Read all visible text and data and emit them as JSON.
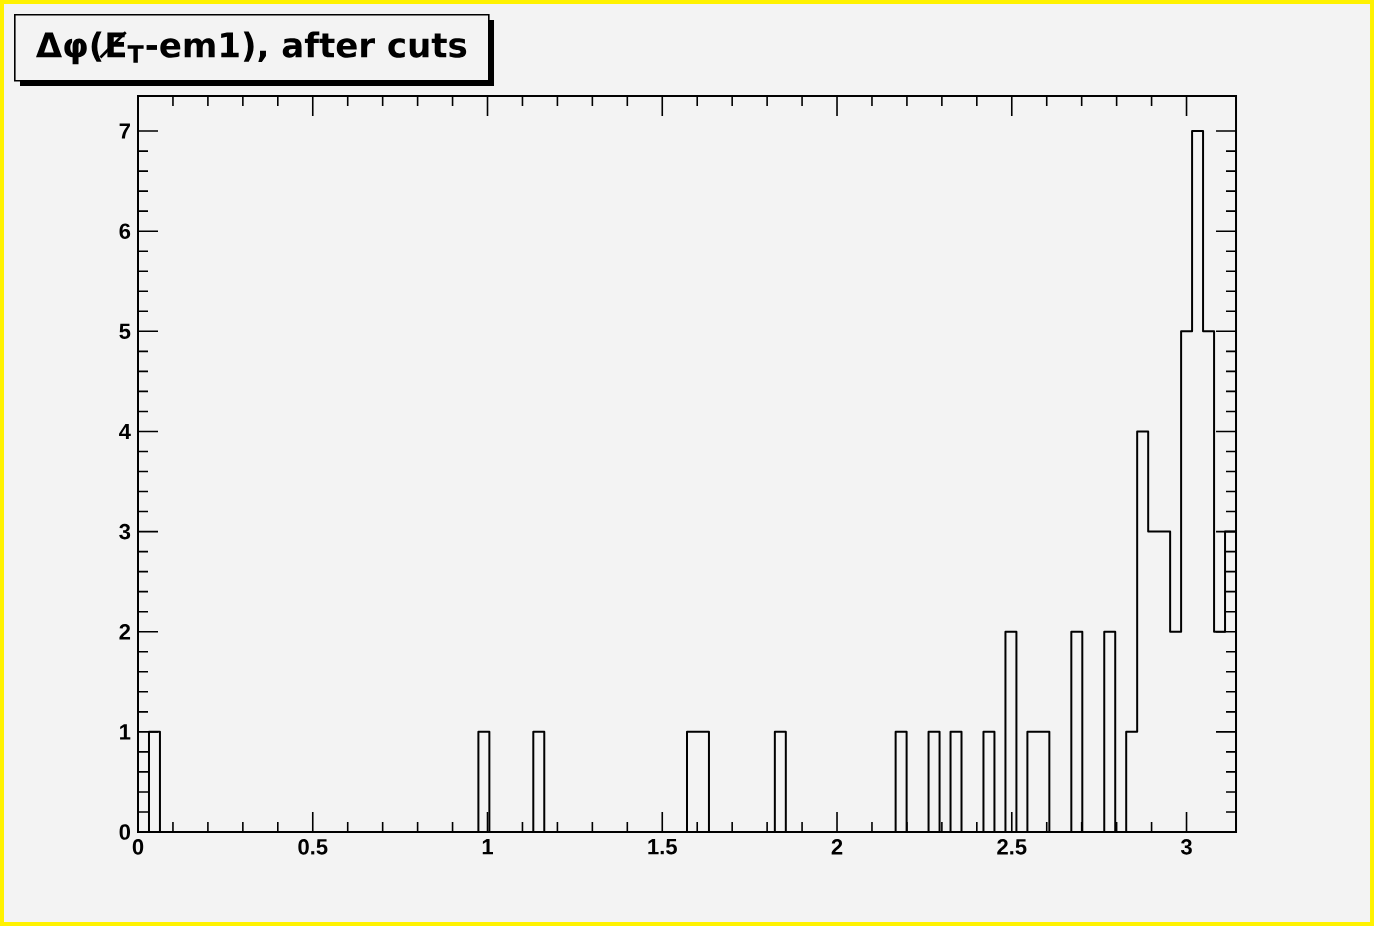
{
  "chart_data": {
    "type": "histogram",
    "title": "Δφ(E̸$_{T}$-em1), after cuts",
    "bins": [
      0,
      0.0314,
      0.0628,
      0.0942,
      0.1257,
      0.1571,
      0.1885,
      0.2199,
      0.2513,
      0.2827,
      0.3142,
      0.3456,
      0.377,
      0.4084,
      0.4398,
      0.4712,
      0.5027,
      0.5341,
      0.5655,
      0.5969,
      0.6283,
      0.6597,
      0.6912,
      0.7226,
      0.754,
      0.7854,
      0.8168,
      0.8482,
      0.8796,
      0.9111,
      0.9425,
      0.9739,
      1.0053,
      1.0367,
      1.0681,
      1.0996,
      1.131,
      1.1624,
      1.1938,
      1.2252,
      1.2566,
      1.2881,
      1.3195,
      1.3509,
      1.3823,
      1.4137,
      1.4451,
      1.4765,
      1.508,
      1.5394,
      1.5708,
      1.6022,
      1.6336,
      1.665,
      1.6965,
      1.7279,
      1.7593,
      1.7907,
      1.8221,
      1.8535,
      1.885,
      1.9164,
      1.9478,
      1.9792,
      2.0106,
      2.042,
      2.0735,
      2.1049,
      2.1363,
      2.1677,
      2.1991,
      2.2305,
      2.2619,
      2.2934,
      2.3248,
      2.3562,
      2.3876,
      2.419,
      2.4504,
      2.4819,
      2.5133,
      2.5447,
      2.5761,
      2.6075,
      2.6389,
      2.6704,
      2.7018,
      2.7332,
      2.7646,
      2.796,
      2.8274,
      2.8588,
      2.8903,
      2.9217,
      2.9531,
      2.9845,
      3.0159,
      3.0473,
      3.0788,
      3.1102,
      3.1416
    ],
    "values": [
      0,
      1,
      0,
      0,
      0,
      0,
      0,
      0,
      0,
      0,
      0,
      0,
      0,
      0,
      0,
      0,
      0,
      0,
      0,
      0,
      0,
      0,
      0,
      0,
      0,
      0,
      0,
      0,
      0,
      0,
      0,
      1,
      0,
      0,
      0,
      0,
      1,
      0,
      0,
      0,
      0,
      0,
      0,
      0,
      0,
      0,
      0,
      0,
      0,
      0,
      1,
      1,
      0,
      0,
      0,
      0,
      0,
      0,
      1,
      0,
      0,
      0,
      0,
      0,
      0,
      0,
      0,
      0,
      0,
      1,
      0,
      0,
      1,
      0,
      1,
      0,
      0,
      1,
      0,
      2,
      0,
      1,
      1,
      0,
      0,
      2,
      0,
      0,
      2,
      0,
      1,
      4,
      3,
      3,
      2,
      5,
      7,
      5,
      2,
      3
    ],
    "color": "#000000",
    "xlim": [
      0,
      3.1416
    ],
    "ylim": [
      0,
      7.35
    ],
    "xticks": [
      0,
      0.5,
      1,
      1.5,
      2,
      2.5,
      3
    ],
    "yticks": [
      0,
      1,
      2,
      3,
      4,
      5,
      6,
      7
    ],
    "grid": false
  }
}
